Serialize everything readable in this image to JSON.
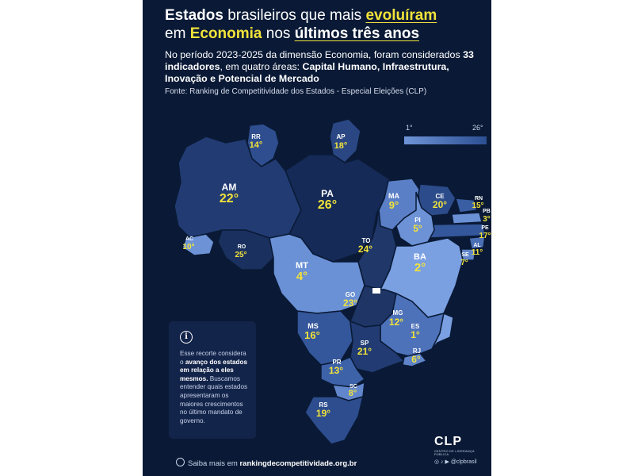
{
  "title": {
    "line1_pre": "Estados",
    "line1_mid": " brasileiros que mais ",
    "line1_hl": "evoluíram",
    "line2_pre": "em ",
    "line2_hl": "Economia",
    "line2_mid": " nos ",
    "line2_end": "últimos três anos"
  },
  "subtitle": {
    "p1": "No período 2023-2025 da dimensão Economia, foram considerados ",
    "b1": "33 indicadores",
    "p2": ", em quatro áreas: ",
    "b2": "Capital Humano, Infraestrutura, Inovação e Potencial de Mercado"
  },
  "source": "Fonte: Ranking de Competitividade dos Estados - Especial Eleições (CLP)",
  "legend": {
    "min": "1°",
    "max": "26°",
    "colors": [
      "#6f94d8",
      "#2c4f93"
    ]
  },
  "states": [
    {
      "id": "RR",
      "rank": "14°"
    },
    {
      "id": "AP",
      "rank": "18°"
    },
    {
      "id": "AM",
      "rank": "22°"
    },
    {
      "id": "PA",
      "rank": "26°"
    },
    {
      "id": "MA",
      "rank": "9°"
    },
    {
      "id": "CE",
      "rank": "20°"
    },
    {
      "id": "RN",
      "rank": "15°"
    },
    {
      "id": "PB",
      "rank": "3°"
    },
    {
      "id": "PE",
      "rank": "17°"
    },
    {
      "id": "PI",
      "rank": "5°"
    },
    {
      "id": "AL",
      "rank": "11°"
    },
    {
      "id": "SE",
      "rank": "7°"
    },
    {
      "id": "AC",
      "rank": "10°"
    },
    {
      "id": "RO",
      "rank": "25°"
    },
    {
      "id": "TO",
      "rank": "24°"
    },
    {
      "id": "BA",
      "rank": "2°"
    },
    {
      "id": "MT",
      "rank": "4°"
    },
    {
      "id": "GO",
      "rank": "23°"
    },
    {
      "id": "MG",
      "rank": "12°"
    },
    {
      "id": "ES",
      "rank": "1°"
    },
    {
      "id": "MS",
      "rank": "16°"
    },
    {
      "id": "SP",
      "rank": "21°"
    },
    {
      "id": "RJ",
      "rank": "6°"
    },
    {
      "id": "PR",
      "rank": "13°"
    },
    {
      "id": "SC",
      "rank": "8°"
    },
    {
      "id": "RS",
      "rank": "19°"
    }
  ],
  "info": {
    "icon": "info-icon",
    "p1": "Esse recorte considera o ",
    "b1": "avanço dos estados em relação a eles mesmos.",
    "p2": " Buscamos entender quais estados apresentaram os maiores crescimentos no último mandato de governo."
  },
  "footer": {
    "pre": "Saiba mais em ",
    "link": "rankingdecompetitividade.org.br"
  },
  "brand": {
    "logo": "CLP",
    "tagline": "CENTRO DE LIDERANÇA PÚBLICA",
    "social": "@clpbrasil"
  }
}
